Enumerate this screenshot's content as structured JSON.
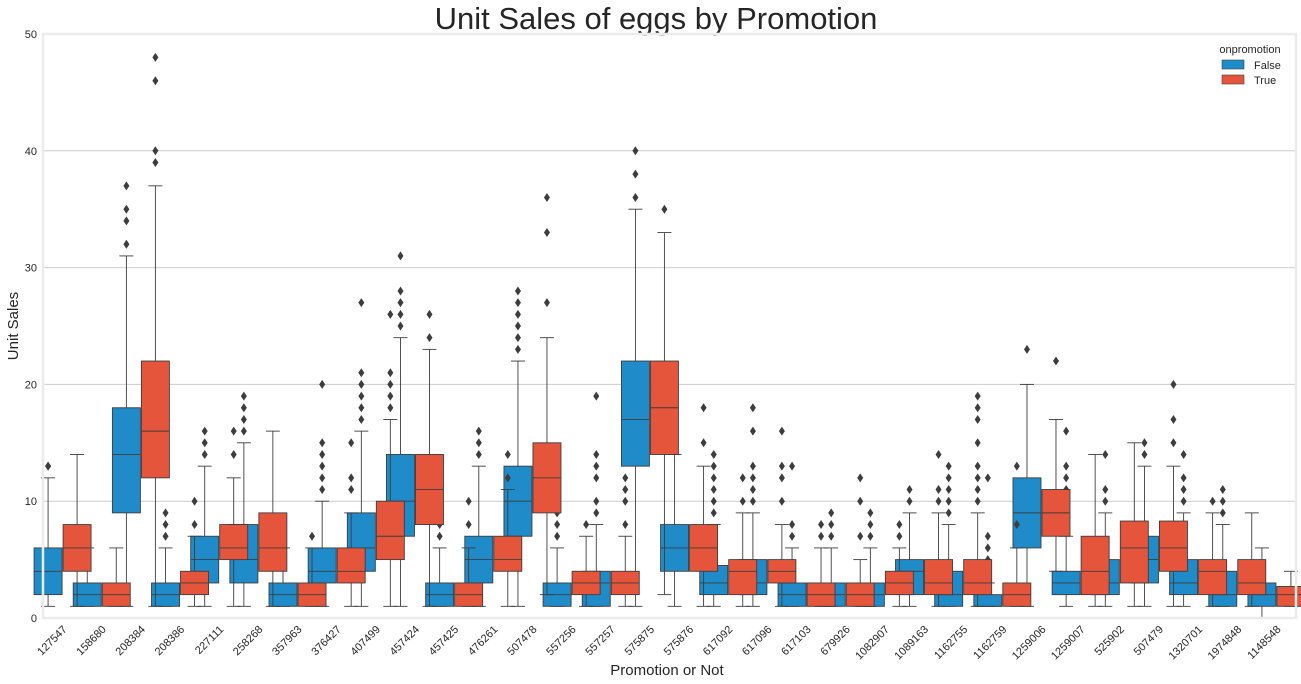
{
  "chart_data": {
    "type": "boxplot",
    "title": "Unit Sales of eggs by Promotion",
    "xlabel": "Promotion or Not",
    "ylabel": "Unit Sales",
    "ylim": [
      0,
      50
    ],
    "yticks": [
      0,
      10,
      20,
      30,
      40,
      50
    ],
    "grid": true,
    "legend": {
      "title": "onpromotion",
      "placement": "top-right"
    },
    "categories": [
      "127547",
      "158680",
      "208384",
      "208386",
      "227111",
      "258268",
      "357963",
      "376427",
      "407499",
      "457424",
      "457425",
      "476261",
      "507478",
      "557256",
      "557257",
      "575875",
      "575876",
      "617092",
      "617096",
      "617103",
      "679926",
      "1082907",
      "1089163",
      "1162755",
      "1162759",
      "1259006",
      "1259007",
      "525902",
      "507479",
      "1320701",
      "1974848",
      "1148548"
    ],
    "series": [
      {
        "name": "False",
        "color": "#1f8bc9",
        "boxes": [
          {
            "min": 1,
            "q1": 2,
            "median": 4,
            "q3": 6,
            "max": 12,
            "outliers": [
              13,
              13
            ]
          },
          {
            "min": 1,
            "q1": 1,
            "median": 2,
            "q3": 3,
            "max": 6,
            "outliers": [
              7,
              7
            ]
          },
          {
            "min": 1,
            "q1": 9,
            "median": 14,
            "q3": 18,
            "max": 31,
            "outliers": [
              32,
              34,
              35,
              37
            ]
          },
          {
            "min": 1,
            "q1": 1,
            "median": 2,
            "q3": 3,
            "max": 6,
            "outliers": [
              7,
              8,
              9
            ]
          },
          {
            "min": 1,
            "q1": 3,
            "median": 5,
            "q3": 7,
            "max": 13,
            "outliers": [
              14,
              15,
              16
            ]
          },
          {
            "min": 1,
            "q1": 3,
            "median": 5,
            "q3": 8,
            "max": 15,
            "outliers": [
              16,
              17,
              18,
              19
            ]
          },
          {
            "min": 1,
            "q1": 1,
            "median": 2,
            "q3": 3,
            "max": 6,
            "outliers": [
              7,
              8
            ]
          },
          {
            "min": 1,
            "q1": 3,
            "median": 4,
            "q3": 6,
            "max": 10,
            "outliers": [
              11,
              12,
              13,
              14,
              15,
              20
            ]
          },
          {
            "min": 1,
            "q1": 4,
            "median": 6,
            "q3": 9,
            "max": 16,
            "outliers": [
              17,
              18,
              19,
              20,
              21,
              27
            ]
          },
          {
            "min": 1,
            "q1": 7,
            "median": 10,
            "q3": 14,
            "max": 24,
            "outliers": [
              25,
              26,
              27,
              28,
              31
            ]
          },
          {
            "min": 1,
            "q1": 1,
            "median": 2,
            "q3": 3,
            "max": 6,
            "outliers": [
              7,
              8,
              11
            ]
          },
          {
            "min": 1,
            "q1": 3,
            "median": 5,
            "q3": 7,
            "max": 13,
            "outliers": [
              14,
              15,
              16
            ]
          },
          {
            "min": 1,
            "q1": 7,
            "median": 10,
            "q3": 13,
            "max": 22,
            "outliers": [
              23,
              24,
              25,
              26,
              27,
              28
            ]
          },
          {
            "min": 1,
            "q1": 1,
            "median": 2,
            "q3": 3,
            "max": 6,
            "outliers": [
              7,
              8,
              9,
              11
            ]
          },
          {
            "min": 1,
            "q1": 1,
            "median": 3,
            "q3": 4,
            "max": 8,
            "outliers": [
              9,
              10,
              12,
              13,
              14,
              19
            ]
          },
          {
            "min": 1,
            "q1": 13,
            "median": 17,
            "q3": 22,
            "max": 35,
            "outliers": [
              36,
              38,
              40
            ]
          },
          {
            "min": 1,
            "q1": 4,
            "median": 6,
            "q3": 8,
            "max": 14,
            "outliers": [
              15,
              16,
              17,
              19,
              21
            ]
          },
          {
            "min": 1,
            "q1": 2,
            "median": 3,
            "q3": 4.5,
            "max": 8,
            "outliers": [
              9,
              10,
              11,
              12,
              13,
              14
            ]
          },
          {
            "min": 1,
            "q1": 2,
            "median": 3,
            "q3": 5,
            "max": 9,
            "outliers": [
              10,
              11,
              12,
              13,
              16,
              18
            ]
          },
          {
            "min": 1,
            "q1": 1,
            "median": 2,
            "q3": 3,
            "max": 6,
            "outliers": [
              7,
              8,
              13
            ]
          },
          {
            "min": 1,
            "q1": 1,
            "median": 2,
            "q3": 3,
            "max": 6,
            "outliers": [
              7,
              8,
              9
            ]
          },
          {
            "min": 1,
            "q1": 1,
            "median": 2,
            "q3": 3,
            "max": 6,
            "outliers": [
              7,
              8,
              9
            ]
          },
          {
            "min": 1,
            "q1": 2,
            "median": 4,
            "q3": 5,
            "max": 9,
            "outliers": [
              10,
              11
            ]
          },
          {
            "min": 1,
            "q1": 1,
            "median": 2,
            "q3": 4,
            "max": 8,
            "outliers": [
              9,
              10,
              11,
              12,
              13
            ]
          },
          {
            "min": 1,
            "q1": 1,
            "median": 1,
            "q3": 2,
            "max": 3,
            "outliers": [
              4,
              5,
              6,
              7,
              12
            ]
          },
          {
            "min": 1,
            "q1": 6,
            "median": 9,
            "q3": 12,
            "max": 20,
            "outliers": [
              23
            ]
          },
          {
            "min": 1,
            "q1": 2,
            "median": 3,
            "q3": 4,
            "max": 7,
            "outliers": [
              8,
              9,
              10,
              11,
              12,
              13,
              16
            ]
          },
          {
            "min": 1,
            "q1": 2,
            "median": 3,
            "q3": 5,
            "max": 9,
            "outliers": [
              10,
              11,
              14
            ]
          },
          {
            "min": 1,
            "q1": 3,
            "median": 5,
            "q3": 7,
            "max": 13,
            "outliers": [
              14,
              15
            ]
          },
          {
            "min": 1,
            "q1": 2,
            "median": 3,
            "q3": 5,
            "max": 9,
            "outliers": [
              10,
              11,
              12,
              14
            ]
          },
          {
            "min": 1,
            "q1": 1,
            "median": 2,
            "q3": 4,
            "max": 8,
            "outliers": [
              9,
              10,
              11
            ]
          },
          {
            "min": 0,
            "q1": 1,
            "median": 2,
            "q3": 3,
            "max": 6,
            "outliers": []
          }
        ]
      },
      {
        "name": "True",
        "color": "#e5553b",
        "boxes": [
          {
            "min": 1,
            "q1": 4,
            "median": 6,
            "q3": 8,
            "max": 14,
            "outliers": []
          },
          {
            "min": 1,
            "q1": 1,
            "median": 2,
            "q3": 3,
            "max": 6,
            "outliers": []
          },
          {
            "min": 1,
            "q1": 12,
            "median": 16,
            "q3": 22,
            "max": 37,
            "outliers": [
              39,
              40,
              46,
              48
            ]
          },
          {
            "min": 1,
            "q1": 2,
            "median": 3,
            "q3": 4,
            "max": 7,
            "outliers": [
              8,
              10
            ]
          },
          {
            "min": 1,
            "q1": 5,
            "median": 6,
            "q3": 8,
            "max": 12,
            "outliers": [
              14,
              16
            ]
          },
          {
            "min": 1,
            "q1": 4,
            "median": 6,
            "q3": 9,
            "max": 16,
            "outliers": []
          },
          {
            "min": 1,
            "q1": 1,
            "median": 2,
            "q3": 3,
            "max": 6,
            "outliers": [
              7
            ]
          },
          {
            "min": 1,
            "q1": 3,
            "median": 4,
            "q3": 6,
            "max": 9,
            "outliers": [
              11,
              12,
              15
            ]
          },
          {
            "min": 1,
            "q1": 5,
            "median": 7,
            "q3": 10,
            "max": 17,
            "outliers": [
              18,
              19,
              20,
              21,
              26
            ]
          },
          {
            "min": 1,
            "q1": 8,
            "median": 11,
            "q3": 14,
            "max": 23,
            "outliers": [
              24,
              26
            ]
          },
          {
            "min": 1,
            "q1": 1,
            "median": 2,
            "q3": 3,
            "max": 6,
            "outliers": [
              8,
              10
            ]
          },
          {
            "min": 1,
            "q1": 4,
            "median": 5,
            "q3": 7,
            "max": 11,
            "outliers": [
              12,
              14
            ]
          },
          {
            "min": 2,
            "q1": 9,
            "median": 12,
            "q3": 15,
            "max": 24,
            "outliers": [
              27,
              33,
              36
            ]
          },
          {
            "min": 1,
            "q1": 2,
            "median": 3,
            "q3": 4,
            "max": 7,
            "outliers": [
              8
            ]
          },
          {
            "min": 1,
            "q1": 2,
            "median": 3,
            "q3": 4,
            "max": 7,
            "outliers": [
              8,
              10,
              11,
              12
            ]
          },
          {
            "min": 2,
            "q1": 14,
            "median": 18,
            "q3": 22,
            "max": 33,
            "outliers": [
              35
            ]
          },
          {
            "min": 1,
            "q1": 4,
            "median": 6,
            "q3": 8,
            "max": 13,
            "outliers": [
              15,
              18
            ]
          },
          {
            "min": 1,
            "q1": 2,
            "median": 4,
            "q3": 5,
            "max": 9,
            "outliers": [
              10,
              12
            ]
          },
          {
            "min": 1,
            "q1": 3,
            "median": 4,
            "q3": 5,
            "max": 8,
            "outliers": [
              10,
              12,
              13,
              16
            ]
          },
          {
            "min": 1,
            "q1": 1,
            "median": 2,
            "q3": 3,
            "max": 6,
            "outliers": [
              7,
              8
            ]
          },
          {
            "min": 1,
            "q1": 1,
            "median": 2,
            "q3": 3,
            "max": 5,
            "outliers": [
              7,
              10,
              12
            ]
          },
          {
            "min": 1,
            "q1": 2,
            "median": 3,
            "q3": 4,
            "max": 6,
            "outliers": [
              7,
              8
            ]
          },
          {
            "min": 1,
            "q1": 2,
            "median": 3,
            "q3": 5,
            "max": 9,
            "outliers": [
              10,
              11,
              14
            ]
          },
          {
            "min": 1,
            "q1": 2,
            "median": 3,
            "q3": 5,
            "max": 9,
            "outliers": [
              10,
              11,
              12,
              13,
              15,
              17,
              18,
              19
            ]
          },
          {
            "min": 1,
            "q1": 1,
            "median": 2,
            "q3": 3,
            "max": 6,
            "outliers": [
              8,
              13
            ]
          },
          {
            "min": 4,
            "q1": 7,
            "median": 9,
            "q3": 11,
            "max": 17,
            "outliers": [
              22
            ]
          },
          {
            "min": 1,
            "q1": 2,
            "median": 4,
            "q3": 7,
            "max": 14,
            "outliers": []
          },
          {
            "min": 1,
            "q1": 3,
            "median": 6,
            "q3": 8.3,
            "max": 15,
            "outliers": []
          },
          {
            "min": 1,
            "q1": 4,
            "median": 6,
            "q3": 8.3,
            "max": 13,
            "outliers": [
              15,
              17,
              20
            ]
          },
          {
            "min": 1,
            "q1": 2,
            "median": 4,
            "q3": 5,
            "max": 9,
            "outliers": [
              10
            ]
          },
          {
            "min": 1,
            "q1": 2,
            "median": 3,
            "q3": 5,
            "max": 9,
            "outliers": []
          },
          {
            "min": 1,
            "q1": 1,
            "median": 2,
            "q3": 2.7,
            "max": 4,
            "outliers": []
          }
        ]
      }
    ]
  }
}
